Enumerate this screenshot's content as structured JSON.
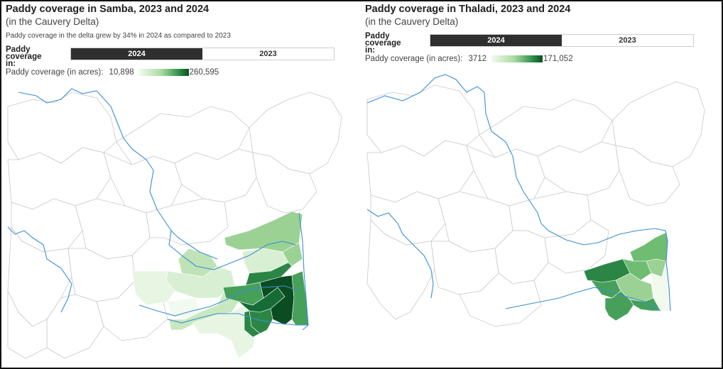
{
  "colors": {
    "c1": "#f2f9ef",
    "c2": "#d9efd3",
    "c3": "#bfe3b6",
    "c4": "#9bd294",
    "c5": "#6fbd72",
    "c6": "#46a05a",
    "c7": "#2b8646",
    "c8": "#166c35",
    "c9": "#0b4d23",
    "toggle_active": "#2f2f2f",
    "river": "#3a8fd6"
  },
  "left": {
    "title": "Paddy coverage in Samba, 2023 and 2024",
    "subtitle": "(in the Cauvery Delta)",
    "note": "Paddy coverage in the delta grew by 34% in 2024 as compared to 2023",
    "toggle_label": "Paddy coverage in:",
    "toggle_options": [
      "2024",
      "2023"
    ],
    "toggle_selected": "2024",
    "legend_label": "Paddy coverage (in acres):",
    "legend_min": "10,898",
    "legend_max": "260,595"
  },
  "right": {
    "title": "Paddy coverage in Thaladi, 2023 and 2024",
    "subtitle": "(in the Cauvery Delta)",
    "toggle_label": "Paddy coverage in:",
    "toggle_options": [
      "2024",
      "2023"
    ],
    "toggle_selected": "2024",
    "legend_label": "Paddy coverage (in acres):",
    "legend_min": "3712",
    "legend_max": "171,052"
  }
}
